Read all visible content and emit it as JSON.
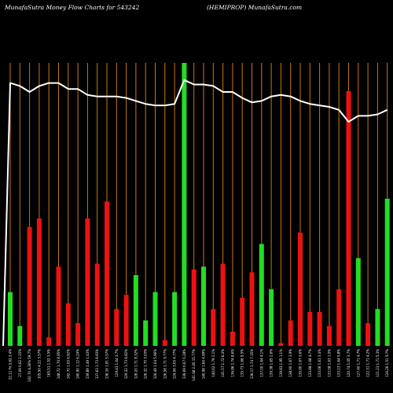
{
  "header": {
    "left": "MunafaSutra  Money Flow  Charts for 543242",
    "right": "(HEMIPROP) MunafaSutra.com"
  },
  "colors": {
    "background": "#000000",
    "up": "#22dd22",
    "down": "#ee1111",
    "grid": "#c87814",
    "line": "#ffffff",
    "label": "#ffffff"
  },
  "chart_data": {
    "type": "bar",
    "title": "MunafaSutra  Money Flow  Charts for 543242",
    "subtitle": "(HEMIPROP) MunafaSutra.com",
    "grid": "vertical",
    "ylim_bars": [
      0,
      100
    ],
    "ylim_line": [
      0,
      100
    ],
    "bars": [
      {
        "label": "22.11 Fri 3.62 3.4%",
        "value": 19,
        "color": "green"
      },
      {
        "label": "27.09 0.62 1.15%",
        "value": 7,
        "color": "green"
      },
      {
        "label": "102.70 4.36% 59.7%",
        "value": 42,
        "color": "red"
      },
      {
        "label": "105.50 4.22 3.57%",
        "value": 45,
        "color": "red"
      },
      {
        "label": "165.51 1.52 3.5%",
        "value": 3,
        "color": "red"
      },
      {
        "label": "148.72 1.70 8.95%",
        "value": 28,
        "color": "red"
      },
      {
        "label": "142.70 1.05 6.92%",
        "value": 15,
        "color": "red"
      },
      {
        "label": "140.90 1.12 6.24%",
        "value": 8,
        "color": "red"
      },
      {
        "label": "139.89 1.49 1.43%",
        "value": 45,
        "color": "red"
      },
      {
        "label": "137.63 1.73 8.93%",
        "value": 29,
        "color": "red"
      },
      {
        "label": "136.16 1.91 5.57%",
        "value": 51,
        "color": "red"
      },
      {
        "label": "129.43 1.64 3.7%",
        "value": 13,
        "color": "red"
      },
      {
        "label": "129.32 1.73 8.82%",
        "value": 18,
        "color": "red"
      },
      {
        "label": "126.20 1.71 8.32%",
        "value": 25,
        "color": "green"
      },
      {
        "label": "126.32 1.70 3.03%",
        "value": 9,
        "color": "green"
      },
      {
        "label": "126.49 1.04 5.96%",
        "value": 19,
        "color": "green"
      },
      {
        "label": "126.58 1.71 9.77%",
        "value": 2,
        "color": "red"
      },
      {
        "label": "124.06 3.05 4.77%",
        "value": 19,
        "color": "green"
      },
      {
        "label": "139.69 0.67 0.28%",
        "value": 100,
        "color": "green"
      },
      {
        "label": "141.48 2.45 15.77%",
        "value": 27,
        "color": "red"
      },
      {
        "label": "140.98 1.60 4.99%",
        "value": 28,
        "color": "green"
      },
      {
        "label": "140.62 1.79 2.1%",
        "value": 13,
        "color": "red"
      },
      {
        "label": "141.57 1.72 6.4%",
        "value": 29,
        "color": "red"
      },
      {
        "label": "136.86 1.74 8.6%",
        "value": 5,
        "color": "red"
      },
      {
        "label": "135.73 1.66 9.5%",
        "value": 17,
        "color": "red"
      },
      {
        "label": "136.17 1.74 7.35%",
        "value": 26,
        "color": "red"
      },
      {
        "label": "137.00 1.64 4.1%",
        "value": 36,
        "color": "green"
      },
      {
        "label": "139.38 1.65 2.6%",
        "value": 20,
        "color": "green"
      },
      {
        "label": "139.83 1.95 1.1%",
        "value": 1,
        "color": "red"
      },
      {
        "label": "138.90 1.67 3.9%",
        "value": 9,
        "color": "red"
      },
      {
        "label": "130.90 1.67 3.6%",
        "value": 40,
        "color": "red"
      },
      {
        "label": "133.88 1.68 4.7%",
        "value": 12,
        "color": "red"
      },
      {
        "label": "133.06 1.61 3.4%",
        "value": 12,
        "color": "red"
      },
      {
        "label": "133.58 1.63 1.0%",
        "value": 7,
        "color": "red"
      },
      {
        "label": "133.23 1.64 5.8%",
        "value": 20,
        "color": "red"
      },
      {
        "label": "120.74 1.05 3.7%",
        "value": 90,
        "color": "red"
      },
      {
        "label": "127.40 1.71 4.7%",
        "value": 31,
        "color": "green"
      },
      {
        "label": "122.31 1.71 4.2%",
        "value": 8,
        "color": "red"
      },
      {
        "label": "121.23 1.71 5.3%",
        "value": 13,
        "color": "green"
      },
      {
        "label": "126.26 1.51 5.7%",
        "value": 52,
        "color": "green"
      }
    ],
    "line": [
      {
        "x": 0,
        "y": 0
      },
      {
        "x": 1,
        "y": 88
      },
      {
        "x": 2,
        "y": 87
      },
      {
        "x": 3,
        "y": 85
      },
      {
        "x": 4,
        "y": 87
      },
      {
        "x": 5,
        "y": 88
      },
      {
        "x": 6,
        "y": 88
      },
      {
        "x": 7,
        "y": 86
      },
      {
        "x": 8,
        "y": 86
      },
      {
        "x": 9,
        "y": 84
      },
      {
        "x": 10,
        "y": 83.5
      },
      {
        "x": 11,
        "y": 83.5
      },
      {
        "x": 12,
        "y": 83.5
      },
      {
        "x": 13,
        "y": 83
      },
      {
        "x": 14,
        "y": 82
      },
      {
        "x": 15,
        "y": 81
      },
      {
        "x": 16,
        "y": 80.5
      },
      {
        "x": 17,
        "y": 80.5
      },
      {
        "x": 18,
        "y": 81
      },
      {
        "x": 19,
        "y": 89
      },
      {
        "x": 20,
        "y": 87.5
      },
      {
        "x": 21,
        "y": 87.5
      },
      {
        "x": 22,
        "y": 87
      },
      {
        "x": 23,
        "y": 85
      },
      {
        "x": 24,
        "y": 85
      },
      {
        "x": 25,
        "y": 83
      },
      {
        "x": 26,
        "y": 81.5
      },
      {
        "x": 27,
        "y": 82
      },
      {
        "x": 28,
        "y": 83.5
      },
      {
        "x": 29,
        "y": 84
      },
      {
        "x": 30,
        "y": 83.5
      },
      {
        "x": 31,
        "y": 82
      },
      {
        "x": 32,
        "y": 81
      },
      {
        "x": 33,
        "y": 80.5
      },
      {
        "x": 34,
        "y": 80
      },
      {
        "x": 35,
        "y": 79
      },
      {
        "x": 36,
        "y": 75
      },
      {
        "x": 37,
        "y": 77
      },
      {
        "x": 38,
        "y": 77
      },
      {
        "x": 39,
        "y": 77.5
      },
      {
        "x": 40,
        "y": 79
      }
    ]
  }
}
